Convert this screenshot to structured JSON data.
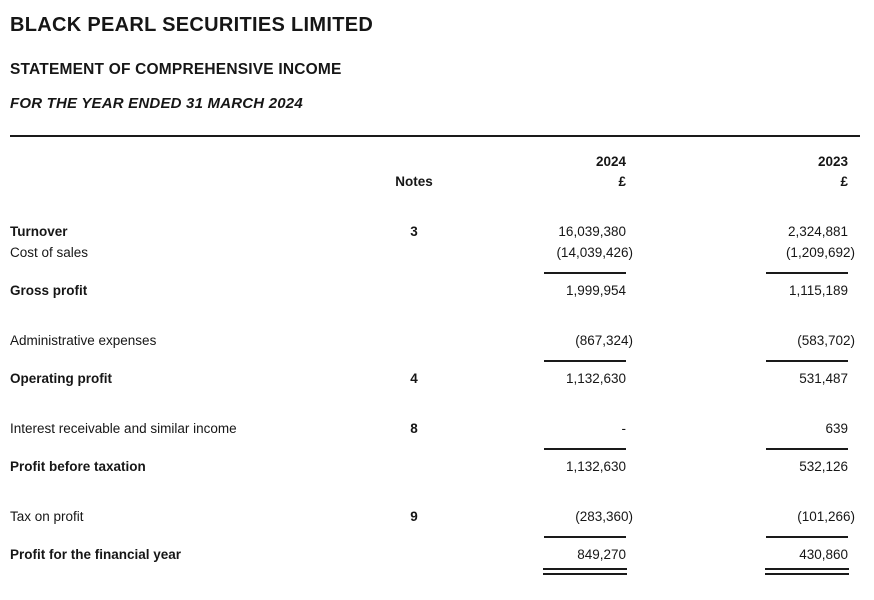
{
  "company": {
    "name": "BLACK PEARL SECURITIES LIMITED"
  },
  "document": {
    "title": "STATEMENT OF COMPREHENSIVE INCOME",
    "period": "FOR THE YEAR ENDED 31 MARCH 2024"
  },
  "table": {
    "headers": {
      "year_current": "2024",
      "year_prior": "2023",
      "notes": "Notes",
      "currency_current": "£",
      "currency_prior": "£"
    },
    "rows": [
      {
        "type": "item",
        "label": "Turnover",
        "bold": true,
        "note": "3",
        "current": "16,039,380",
        "prior": "2,324,881"
      },
      {
        "type": "item",
        "label": "Cost of sales",
        "bold": false,
        "note": "",
        "current": "(14,039,426)",
        "prior": "(1,209,692)"
      },
      {
        "type": "rule"
      },
      {
        "type": "item",
        "label": "Gross profit",
        "bold": true,
        "note": "",
        "current": "1,999,954",
        "prior": "1,115,189"
      },
      {
        "type": "spacer"
      },
      {
        "type": "item",
        "label": "Administrative expenses",
        "bold": false,
        "note": "",
        "current": "(867,324)",
        "prior": "(583,702)"
      },
      {
        "type": "rule"
      },
      {
        "type": "item",
        "label": "Operating profit",
        "bold": true,
        "note": "4",
        "current": "1,132,630",
        "prior": "531,487"
      },
      {
        "type": "spacer"
      },
      {
        "type": "item",
        "label": "Interest receivable and similar income",
        "bold": false,
        "note": "8",
        "current": "-",
        "prior": "639"
      },
      {
        "type": "rule"
      },
      {
        "type": "item",
        "label": "Profit before taxation",
        "bold": true,
        "note": "",
        "current": "1,132,630",
        "prior": "532,126"
      },
      {
        "type": "spacer"
      },
      {
        "type": "item",
        "label": "Tax on profit",
        "bold": false,
        "note": "9",
        "current": "(283,360)",
        "prior": "(101,266)"
      },
      {
        "type": "rule"
      },
      {
        "type": "item",
        "label": "Profit for the financial year",
        "bold": true,
        "note": "",
        "current": "849,270",
        "prior": "430,860"
      },
      {
        "type": "double-rule"
      }
    ]
  }
}
